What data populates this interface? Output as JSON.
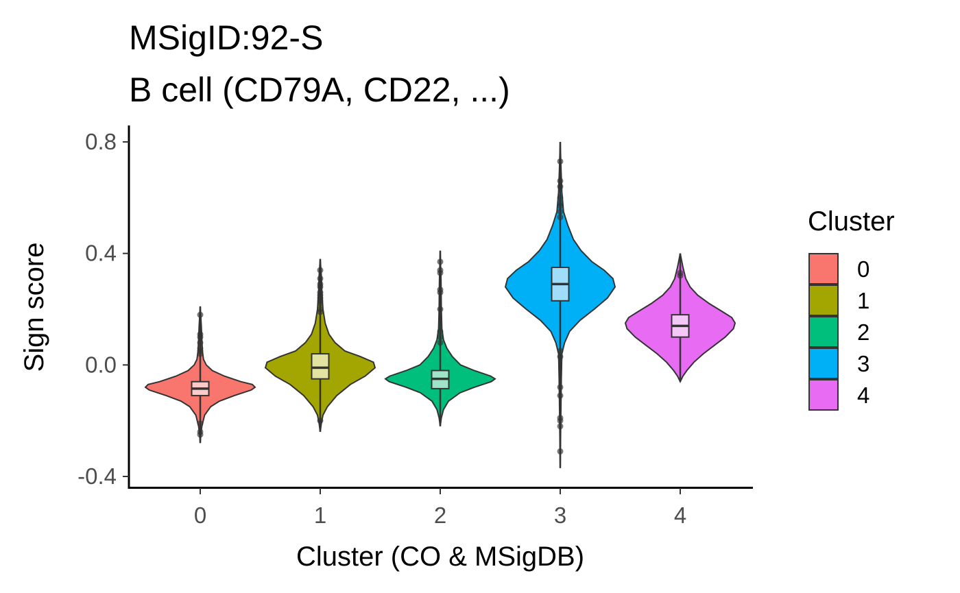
{
  "chart_data": {
    "type": "violin",
    "title": "MSigID:92-S",
    "subtitle": "B cell (CD79A, CD22, ...)",
    "xlabel": "Cluster (CO & MSigDB)",
    "ylabel": "Sign score",
    "ylim": [
      -0.4,
      0.8
    ],
    "yticks": [
      "-0.4",
      "0.0",
      "0.4",
      "0.8"
    ],
    "categories": [
      "0",
      "1",
      "2",
      "3",
      "4"
    ],
    "grid": false,
    "legend": {
      "title": "Cluster",
      "position": "right",
      "entries": [
        "0",
        "1",
        "2",
        "3",
        "4"
      ]
    },
    "series": [
      {
        "name": "0",
        "color": "#F8766D",
        "box_fill": "#FCCBC7",
        "violin": [
          [
            -0.28,
            0
          ],
          [
            -0.25,
            0.01
          ],
          [
            -0.22,
            0.03
          ],
          [
            -0.18,
            0.08
          ],
          [
            -0.15,
            0.19
          ],
          [
            -0.13,
            0.35
          ],
          [
            -0.11,
            0.62
          ],
          [
            -0.09,
            0.93
          ],
          [
            -0.08,
            1
          ],
          [
            -0.07,
            0.95
          ],
          [
            -0.06,
            0.74
          ],
          [
            -0.04,
            0.44
          ],
          [
            -0.02,
            0.22
          ],
          [
            0,
            0.11
          ],
          [
            0.02,
            0.06
          ],
          [
            0.05,
            0.04
          ],
          [
            0.09,
            0.03
          ],
          [
            0.14,
            0.02
          ],
          [
            0.21,
            0
          ]
        ],
        "box": {
          "min": -0.19,
          "q1": -0.11,
          "median": -0.085,
          "q3": -0.06,
          "max": 0.17
        },
        "outliers": [
          -0.25,
          -0.24,
          -0.21,
          0.04,
          0.05,
          0.06,
          0.08,
          0.1,
          0.11,
          0.18
        ]
      },
      {
        "name": "1",
        "color": "#A3A500",
        "box_fill": "#E3E3A1",
        "violin": [
          [
            -0.24,
            0
          ],
          [
            -0.21,
            0.02
          ],
          [
            -0.18,
            0.05
          ],
          [
            -0.15,
            0.13
          ],
          [
            -0.11,
            0.3
          ],
          [
            -0.07,
            0.55
          ],
          [
            -0.04,
            0.82
          ],
          [
            -0.01,
            1
          ],
          [
            0.01,
            0.97
          ],
          [
            0.03,
            0.73
          ],
          [
            0.05,
            0.45
          ],
          [
            0.08,
            0.27
          ],
          [
            0.11,
            0.16
          ],
          [
            0.15,
            0.09
          ],
          [
            0.2,
            0.05
          ],
          [
            0.26,
            0.03
          ],
          [
            0.32,
            0.02
          ],
          [
            0.38,
            0
          ]
        ],
        "box": {
          "min": -0.15,
          "q1": -0.05,
          "median": -0.01,
          "q3": 0.04,
          "max": 0.16
        },
        "outliers": [
          -0.2,
          0.19,
          0.2,
          0.22,
          0.23,
          0.24,
          0.25,
          0.26,
          0.28,
          0.29,
          0.31,
          0.34
        ]
      },
      {
        "name": "2",
        "color": "#00BF7D",
        "box_fill": "#9FE4C9",
        "violin": [
          [
            -0.22,
            0
          ],
          [
            -0.19,
            0.02
          ],
          [
            -0.16,
            0.06
          ],
          [
            -0.13,
            0.15
          ],
          [
            -0.1,
            0.36
          ],
          [
            -0.08,
            0.62
          ],
          [
            -0.06,
            0.93
          ],
          [
            -0.05,
            1
          ],
          [
            -0.04,
            0.92
          ],
          [
            -0.02,
            0.62
          ],
          [
            0,
            0.37
          ],
          [
            0.03,
            0.22
          ],
          [
            0.06,
            0.12
          ],
          [
            0.09,
            0.06
          ],
          [
            0.13,
            0.03
          ],
          [
            0.2,
            0.02
          ],
          [
            0.3,
            0.015
          ],
          [
            0.41,
            0
          ]
        ],
        "box": {
          "min": -0.16,
          "q1": -0.085,
          "median": -0.05,
          "q3": -0.02,
          "max": 0.07
        },
        "outliers": [
          0.08,
          0.1,
          0.12,
          0.2,
          0.26,
          0.27,
          0.33,
          0.34,
          0.37
        ]
      },
      {
        "name": "3",
        "color": "#00B0F6",
        "box_fill": "#9FDDFB",
        "violin": [
          [
            -0.37,
            0
          ],
          [
            -0.2,
            0.01
          ],
          [
            -0.05,
            0.02
          ],
          [
            0.04,
            0.03
          ],
          [
            0.08,
            0.08
          ],
          [
            0.12,
            0.17
          ],
          [
            0.16,
            0.36
          ],
          [
            0.2,
            0.62
          ],
          [
            0.24,
            0.86
          ],
          [
            0.28,
            1
          ],
          [
            0.31,
            0.96
          ],
          [
            0.34,
            0.8
          ],
          [
            0.37,
            0.58
          ],
          [
            0.41,
            0.38
          ],
          [
            0.45,
            0.24
          ],
          [
            0.5,
            0.14
          ],
          [
            0.55,
            0.06
          ],
          [
            0.62,
            0.03
          ],
          [
            0.7,
            0.015
          ],
          [
            0.8,
            0
          ]
        ],
        "box": {
          "min": 0.08,
          "q1": 0.23,
          "median": 0.29,
          "q3": 0.35,
          "max": 0.52
        },
        "outliers": [
          -0.31,
          -0.22,
          -0.2,
          -0.19,
          -0.11,
          -0.08,
          0.03,
          0.05,
          0.53,
          0.55,
          0.57,
          0.58,
          0.6,
          0.64,
          0.66,
          0.73
        ]
      },
      {
        "name": "4",
        "color": "#E76BF3",
        "box_fill": "#F5C8FA",
        "violin": [
          [
            -0.06,
            0
          ],
          [
            -0.04,
            0.05
          ],
          [
            -0.02,
            0.12
          ],
          [
            0.01,
            0.25
          ],
          [
            0.04,
            0.42
          ],
          [
            0.07,
            0.62
          ],
          [
            0.1,
            0.82
          ],
          [
            0.13,
            0.97
          ],
          [
            0.15,
            1
          ],
          [
            0.17,
            0.94
          ],
          [
            0.19,
            0.78
          ],
          [
            0.22,
            0.53
          ],
          [
            0.25,
            0.32
          ],
          [
            0.28,
            0.18
          ],
          [
            0.31,
            0.1
          ],
          [
            0.35,
            0.05
          ],
          [
            0.4,
            0
          ]
        ],
        "box": {
          "min": 0.01,
          "q1": 0.1,
          "median": 0.14,
          "q3": 0.18,
          "max": 0.27
        },
        "outliers": [
          0.32,
          0.33
        ]
      }
    ]
  }
}
